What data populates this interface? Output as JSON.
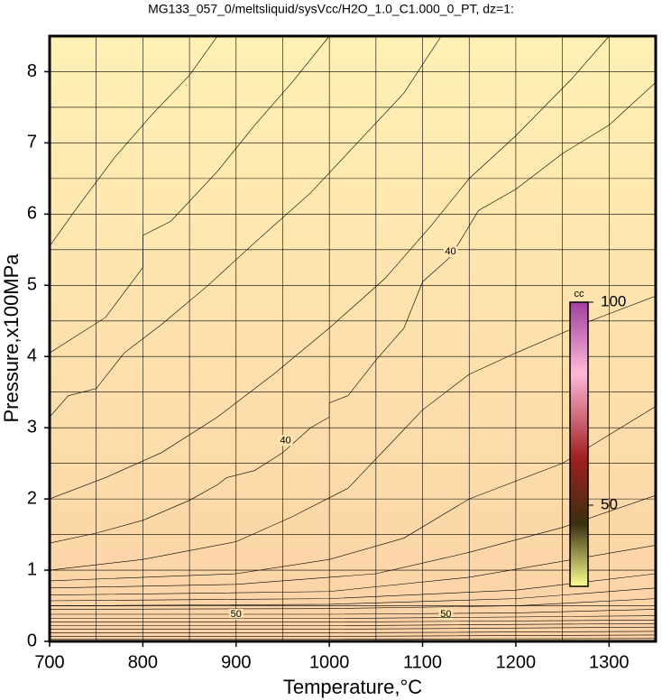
{
  "chart_data": {
    "type": "contour",
    "title": "MG133_057_0/meltsliquid/sysVcc/H2O_1.0_C1.000_0_PT, dz=1:",
    "x_label": "Temperature,°C",
    "y_label": "Pressure,x100MPa",
    "xlim": [
      700,
      1350
    ],
    "ylim": [
      0,
      8.5
    ],
    "xticks": [
      700,
      800,
      900,
      1000,
      1100,
      1200,
      1300
    ],
    "yticks": [
      0,
      1,
      2,
      3,
      4,
      5,
      6,
      7,
      8
    ],
    "xgrid": [
      750,
      800,
      850,
      900,
      950,
      1000,
      1050,
      1100,
      1150,
      1200,
      1250,
      1300
    ],
    "ygrid": [
      0.5,
      1,
      1.5,
      2,
      2.5,
      3,
      3.5,
      4,
      4.5,
      5,
      5.5,
      6,
      6.5,
      7,
      7.5,
      8
    ],
    "contours": [
      {
        "bold": true,
        "x": [
          700,
          750,
          800,
          850,
          880,
          890,
          920,
          950,
          980,
          1000,
          1000,
          1020,
          1050,
          1080,
          1100,
          1130,
          1160,
          1200,
          1250,
          1300,
          1350
        ],
        "y": [
          1.38,
          1.52,
          1.7,
          1.98,
          2.2,
          2.3,
          2.4,
          2.65,
          3.0,
          3.15,
          3.35,
          3.45,
          3.95,
          4.4,
          5.05,
          5.4,
          6.05,
          6.35,
          6.85,
          7.25,
          7.85
        ],
        "labels": [
          {
            "text": "40",
            "x": 953,
            "y": 2.82
          },
          {
            "text": "40",
            "x": 1130,
            "y": 5.47
          }
        ]
      },
      {
        "bold": false,
        "x": [
          700,
          730,
          770,
          810,
          850,
          880
        ],
        "y": [
          5.55,
          6.1,
          6.8,
          7.4,
          7.95,
          8.5
        ]
      },
      {
        "bold": false,
        "x": [
          700,
          760,
          800,
          800,
          830,
          880,
          920,
          960,
          1000
        ],
        "y": [
          4.05,
          4.55,
          5.25,
          5.7,
          5.9,
          6.6,
          7.25,
          7.85,
          8.5
        ]
      },
      {
        "bold": false,
        "x": [
          700,
          720,
          750,
          780,
          820,
          870,
          920,
          980,
          1030,
          1080,
          1120
        ],
        "y": [
          3.15,
          3.45,
          3.55,
          4.05,
          4.45,
          5.0,
          5.6,
          6.3,
          7.0,
          7.7,
          8.5
        ]
      },
      {
        "bold": false,
        "x": [
          700,
          760,
          820,
          880,
          940,
          1000,
          1060,
          1110,
          1150,
          1200,
          1260,
          1300
        ],
        "y": [
          2.0,
          2.3,
          2.65,
          3.15,
          3.75,
          4.4,
          5.1,
          5.85,
          6.5,
          7.1,
          7.9,
          8.5
        ]
      },
      {
        "bold": false,
        "x": [
          700,
          800,
          900,
          960,
          1020,
          1060,
          1100,
          1150,
          1200,
          1280,
          1350
        ],
        "y": [
          1.0,
          1.15,
          1.4,
          1.75,
          2.15,
          2.7,
          3.25,
          3.75,
          4.05,
          4.5,
          4.85
        ]
      },
      {
        "bold": false,
        "x": [
          700,
          900,
          1000,
          1080,
          1150,
          1250,
          1350
        ],
        "y": [
          0.85,
          0.95,
          1.15,
          1.45,
          2.0,
          2.5,
          3.3
        ]
      },
      {
        "bold": false,
        "x": [
          700,
          900,
          1050,
          1150,
          1250,
          1350
        ],
        "y": [
          0.75,
          0.8,
          0.95,
          1.25,
          1.6,
          2.05
        ]
      },
      {
        "bold": false,
        "x": [
          700,
          1000,
          1150,
          1350
        ],
        "y": [
          0.65,
          0.7,
          0.9,
          1.35
        ]
      },
      {
        "bold": false,
        "x": [
          700,
          1000,
          1200,
          1350
        ],
        "y": [
          0.57,
          0.6,
          0.72,
          0.95
        ]
      },
      {
        "bold": false,
        "x": [
          700,
          1000,
          1200,
          1350
        ],
        "y": [
          0.5,
          0.52,
          0.6,
          0.75
        ]
      },
      {
        "bold": false,
        "x": [
          700,
          1000,
          1200,
          1350
        ],
        "y": [
          0.45,
          0.46,
          0.5,
          0.6
        ]
      },
      {
        "bold": true,
        "x": [
          700,
          1000,
          1200,
          1350
        ],
        "y": [
          0.38,
          0.38,
          0.4,
          0.45
        ],
        "labels": [
          {
            "text": "50",
            "x": 900,
            "y": 0.38
          },
          {
            "text": "50",
            "x": 1125,
            "y": 0.38
          }
        ]
      },
      {
        "bold": false,
        "x": [
          700,
          1000,
          1350
        ],
        "y": [
          0.32,
          0.32,
          0.36
        ]
      },
      {
        "bold": false,
        "x": [
          700,
          1000,
          1350
        ],
        "y": [
          0.27,
          0.27,
          0.3
        ]
      },
      {
        "bold": false,
        "x": [
          700,
          1000,
          1350
        ],
        "y": [
          0.22,
          0.22,
          0.25
        ]
      },
      {
        "bold": false,
        "x": [
          700,
          1000,
          1350
        ],
        "y": [
          0.17,
          0.17,
          0.2
        ]
      },
      {
        "bold": false,
        "x": [
          700,
          1000,
          1350
        ],
        "y": [
          0.12,
          0.12,
          0.14
        ]
      },
      {
        "bold": false,
        "x": [
          700,
          1000,
          1350
        ],
        "y": [
          0.07,
          0.07,
          0.09
        ]
      },
      {
        "bold": false,
        "x": [
          700,
          1000,
          1350
        ],
        "y": [
          0.03,
          0.03,
          0.04
        ]
      }
    ],
    "colorbar": {
      "label": "cc",
      "lim": [
        30,
        100
      ],
      "ticks": [
        50,
        100
      ]
    }
  }
}
